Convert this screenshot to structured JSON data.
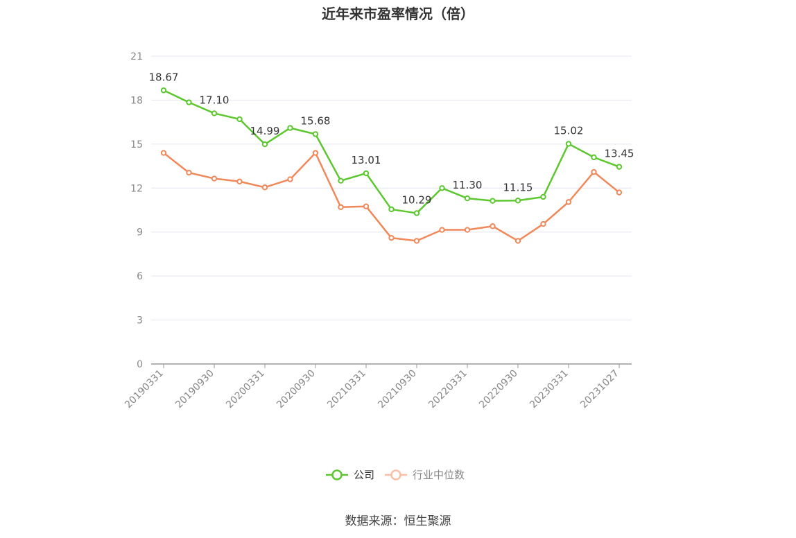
{
  "title": "近年来市盈率情况（倍）",
  "source": "数据来源：恒生聚源",
  "colors": {
    "company": "#5cc72e",
    "industry": "#f0885a",
    "grid": "#e4e6ef",
    "axis": "#999999"
  },
  "chart_data": {
    "type": "line",
    "title": "近年来市盈率情况（倍）",
    "xlabel": "",
    "ylabel": "",
    "ylim": [
      0,
      21
    ],
    "yticks": [
      0,
      3,
      6,
      9,
      12,
      15,
      18,
      21
    ],
    "grid": true,
    "legend_position": "bottom",
    "x": [
      "20190331",
      "20190630",
      "20190930",
      "20191231",
      "20200331",
      "20200630",
      "20200930",
      "20201231",
      "20210331",
      "20210630",
      "20210930",
      "20211231",
      "20220331",
      "20220630",
      "20220930",
      "20221231",
      "20230331",
      "20230630",
      "20231027"
    ],
    "x_tick_labels": [
      "20190331",
      "20190930",
      "20200331",
      "20200930",
      "20210331",
      "20210930",
      "20220331",
      "20220930",
      "20230331",
      "20231027"
    ],
    "series": [
      {
        "name": "公司",
        "values": [
          18.67,
          17.85,
          17.1,
          16.7,
          14.99,
          16.1,
          15.68,
          12.5,
          13.01,
          10.55,
          10.29,
          12.0,
          11.3,
          11.13,
          11.15,
          11.4,
          15.02,
          14.1,
          13.45
        ],
        "labels": [
          "18.67",
          "",
          "17.10",
          "",
          "14.99",
          "",
          "15.68",
          "",
          "13.01",
          "",
          "10.29",
          "",
          "11.30",
          "",
          "11.15",
          "",
          "15.02",
          "",
          "13.45"
        ]
      },
      {
        "name": "行业中位数",
        "values": [
          14.4,
          13.05,
          12.65,
          12.45,
          12.05,
          12.6,
          14.4,
          10.7,
          10.75,
          8.6,
          8.4,
          9.15,
          9.15,
          9.4,
          8.4,
          9.55,
          11.05,
          13.1,
          11.7
        ]
      }
    ]
  }
}
